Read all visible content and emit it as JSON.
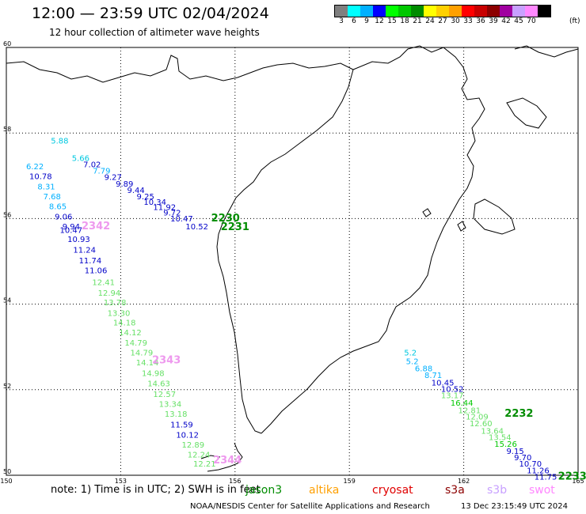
{
  "header": {
    "title": "12:00 — 23:59 UTC 02/04/2024",
    "subtitle": "12 hour collection of altimeter wave heights"
  },
  "colorbar": {
    "unit": "(ft)",
    "swatches": [
      {
        "label": "3",
        "color": "#7f7f7f"
      },
      {
        "label": "6",
        "color": "#00ffff"
      },
      {
        "label": "9",
        "color": "#00b0ff"
      },
      {
        "label": "12",
        "color": "#0000ff"
      },
      {
        "label": "15",
        "color": "#00ff00"
      },
      {
        "label": "18",
        "color": "#00c800"
      },
      {
        "label": "21",
        "color": "#008c00"
      },
      {
        "label": "24",
        "color": "#ffff00"
      },
      {
        "label": "27",
        "color": "#ffd000"
      },
      {
        "label": "30",
        "color": "#ffa000"
      },
      {
        "label": "33",
        "color": "#ff0000"
      },
      {
        "label": "36",
        "color": "#c80000"
      },
      {
        "label": "39",
        "color": "#8c0000"
      },
      {
        "label": "42",
        "color": "#a000a0"
      },
      {
        "label": "45",
        "color": "#c8a0ff"
      },
      {
        "label": "70",
        "color": "#ff88ff"
      },
      {
        "label": "",
        "color": "#000000"
      }
    ]
  },
  "map": {
    "lon_ticks": [
      "150",
      "153",
      "156",
      "159",
      "162",
      "165"
    ],
    "lat_ticks": [
      "60",
      "58",
      "56",
      "54",
      "52",
      "50"
    ],
    "lon_range": [
      150,
      165
    ],
    "lat_range": [
      50,
      60
    ]
  },
  "tracks": {
    "labels": [
      {
        "text": "5.88",
        "lon": 151.4,
        "lat": 57.75,
        "color": "#00c8e0"
      },
      {
        "text": "5.66",
        "lon": 151.95,
        "lat": 57.35,
        "color": "#00c8e0"
      },
      {
        "text": "7.02",
        "lon": 152.25,
        "lat": 57.2,
        "color": "#0000c8"
      },
      {
        "text": "7.79",
        "lon": 152.5,
        "lat": 57.05,
        "color": "#00b0ff"
      },
      {
        "text": "9.27",
        "lon": 152.8,
        "lat": 56.9,
        "color": "#0000c8"
      },
      {
        "text": "9.89",
        "lon": 153.1,
        "lat": 56.75,
        "color": "#0000c8"
      },
      {
        "text": "9.44",
        "lon": 153.4,
        "lat": 56.6,
        "color": "#0000c8"
      },
      {
        "text": "9.25",
        "lon": 153.65,
        "lat": 56.45,
        "color": "#0000c8"
      },
      {
        "text": "10.34",
        "lon": 153.9,
        "lat": 56.32,
        "color": "#0000c8"
      },
      {
        "text": "11.92",
        "lon": 154.15,
        "lat": 56.2,
        "color": "#0000c8"
      },
      {
        "text": "9.72",
        "lon": 154.35,
        "lat": 56.07,
        "color": "#0000c8"
      },
      {
        "text": "10.47",
        "lon": 154.6,
        "lat": 55.93,
        "color": "#0000c8"
      },
      {
        "text": "10.52",
        "lon": 155.0,
        "lat": 55.75,
        "color": "#0000c8"
      },
      {
        "text": "6.22",
        "lon": 150.75,
        "lat": 57.15,
        "color": "#00b0ff"
      },
      {
        "text": "10.78",
        "lon": 150.9,
        "lat": 56.92,
        "color": "#0000c8"
      },
      {
        "text": "8.31",
        "lon": 151.05,
        "lat": 56.68,
        "color": "#00b0ff"
      },
      {
        "text": "7.68",
        "lon": 151.2,
        "lat": 56.45,
        "color": "#00b0ff"
      },
      {
        "text": "8.65",
        "lon": 151.35,
        "lat": 56.22,
        "color": "#00b0ff"
      },
      {
        "text": "9.06",
        "lon": 151.5,
        "lat": 55.98,
        "color": "#0000c8"
      },
      {
        "text": "9.94",
        "lon": 151.7,
        "lat": 55.75,
        "color": "#0000c8"
      },
      {
        "text": "10.47",
        "lon": 151.7,
        "lat": 55.67,
        "color": "#0000c8"
      },
      {
        "text": "10.93",
        "lon": 151.9,
        "lat": 55.45,
        "color": "#0000c8"
      },
      {
        "text": "11.24",
        "lon": 152.05,
        "lat": 55.2,
        "color": "#0000c8"
      },
      {
        "text": "11.74",
        "lon": 152.2,
        "lat": 54.95,
        "color": "#0000c8"
      },
      {
        "text": "11.06",
        "lon": 152.35,
        "lat": 54.72,
        "color": "#0000c8"
      },
      {
        "text": "12.41",
        "lon": 152.55,
        "lat": 54.45,
        "color": "#66e066"
      },
      {
        "text": "12.94",
        "lon": 152.7,
        "lat": 54.2,
        "color": "#66e066"
      },
      {
        "text": "13.78",
        "lon": 152.85,
        "lat": 53.97,
        "color": "#66e066"
      },
      {
        "text": "13.30",
        "lon": 152.95,
        "lat": 53.72,
        "color": "#66e066"
      },
      {
        "text": "14.18",
        "lon": 153.1,
        "lat": 53.5,
        "color": "#66e066"
      },
      {
        "text": "14.12",
        "lon": 153.25,
        "lat": 53.27,
        "color": "#66e066"
      },
      {
        "text": "14.79",
        "lon": 153.4,
        "lat": 53.03,
        "color": "#66e066"
      },
      {
        "text": "14.79",
        "lon": 153.55,
        "lat": 52.8,
        "color": "#66e066"
      },
      {
        "text": "14.14",
        "lon": 153.7,
        "lat": 52.57,
        "color": "#66e066"
      },
      {
        "text": "14.98",
        "lon": 153.85,
        "lat": 52.32,
        "color": "#66e066"
      },
      {
        "text": "14.63",
        "lon": 154.0,
        "lat": 52.08,
        "color": "#66e066"
      },
      {
        "text": "12.57",
        "lon": 154.15,
        "lat": 51.83,
        "color": "#66e066"
      },
      {
        "text": "13.34",
        "lon": 154.3,
        "lat": 51.6,
        "color": "#66e066"
      },
      {
        "text": "13.18",
        "lon": 154.45,
        "lat": 51.37,
        "color": "#66e066"
      },
      {
        "text": "11.59",
        "lon": 154.6,
        "lat": 51.12,
        "color": "#0000c8"
      },
      {
        "text": "10.12",
        "lon": 154.75,
        "lat": 50.88,
        "color": "#0000c8"
      },
      {
        "text": "12.89",
        "lon": 154.9,
        "lat": 50.65,
        "color": "#66e066"
      },
      {
        "text": "12.24",
        "lon": 155.05,
        "lat": 50.42,
        "color": "#66e066"
      },
      {
        "text": "12.21",
        "lon": 155.2,
        "lat": 50.2,
        "color": "#66e066"
      },
      {
        "text": "5.2",
        "lon": 160.6,
        "lat": 52.8,
        "color": "#00c8e0"
      },
      {
        "text": "5.2",
        "lon": 160.65,
        "lat": 52.6,
        "color": "#00b0ff"
      },
      {
        "text": "6.88",
        "lon": 160.95,
        "lat": 52.43,
        "color": "#00b0ff"
      },
      {
        "text": "8.71",
        "lon": 161.2,
        "lat": 52.27,
        "color": "#00b0ff"
      },
      {
        "text": "10.45",
        "lon": 161.45,
        "lat": 52.1,
        "color": "#0000c8"
      },
      {
        "text": "10.52",
        "lon": 161.7,
        "lat": 51.95,
        "color": "#0000c8"
      },
      {
        "text": "13.17",
        "lon": 161.7,
        "lat": 51.8,
        "color": "#66e066"
      },
      {
        "text": "16.44",
        "lon": 161.95,
        "lat": 51.63,
        "color": "#00c800"
      },
      {
        "text": "12.81",
        "lon": 162.15,
        "lat": 51.45,
        "color": "#66e066"
      },
      {
        "text": "12.09",
        "lon": 162.35,
        "lat": 51.3,
        "color": "#66e066"
      },
      {
        "text": "12.60",
        "lon": 162.45,
        "lat": 51.15,
        "color": "#66e066"
      },
      {
        "text": "13.64",
        "lon": 162.75,
        "lat": 50.97,
        "color": "#66e066"
      },
      {
        "text": "13.54",
        "lon": 162.95,
        "lat": 50.82,
        "color": "#66e066"
      },
      {
        "text": "15.26",
        "lon": 163.1,
        "lat": 50.67,
        "color": "#00c800"
      },
      {
        "text": "9.15",
        "lon": 163.35,
        "lat": 50.5,
        "color": "#0000c8"
      },
      {
        "text": "9.70",
        "lon": 163.55,
        "lat": 50.35,
        "color": "#0000c8"
      },
      {
        "text": "10.70",
        "lon": 163.75,
        "lat": 50.2,
        "color": "#0000c8"
      },
      {
        "text": "11.26",
        "lon": 163.95,
        "lat": 50.05,
        "color": "#0000c8"
      },
      {
        "text": "11.75",
        "lon": 164.15,
        "lat": 49.9,
        "color": "#0000c8"
      }
    ],
    "time_tags": [
      {
        "text": "2230",
        "lon": 155.75,
        "lat": 55.93,
        "color": "#008c00"
      },
      {
        "text": "2231",
        "lon": 156.0,
        "lat": 55.73,
        "color": "#008c00"
      },
      {
        "text": "2342",
        "lon": 152.35,
        "lat": 55.75,
        "color": "#ee99ee"
      },
      {
        "text": "2343",
        "lon": 154.2,
        "lat": 52.62,
        "color": "#ee99ee"
      },
      {
        "text": "2232",
        "lon": 163.45,
        "lat": 51.37,
        "color": "#008c00"
      },
      {
        "text": "2233",
        "lon": 164.85,
        "lat": 49.9,
        "color": "#008c00"
      },
      {
        "text": "2344",
        "lon": 155.8,
        "lat": 50.28,
        "color": "#ee99ee"
      }
    ]
  },
  "footer": {
    "note": "note: 1) Time is in UTC; 2) SWH is in feet",
    "satellites": [
      {
        "label": "jason3",
        "color": "#008c00"
      },
      {
        "label": "altika",
        "color": "#ffa000"
      },
      {
        "label": "cryosat",
        "color": "#e00000"
      },
      {
        "label": "s3a",
        "color": "#8c0000"
      },
      {
        "label": "s3b",
        "color": "#c8a0ff"
      },
      {
        "label": "swot",
        "color": "#ff88ff"
      }
    ],
    "credit": "NOAA/NESDIS Center for Satellite Applications and Research",
    "date": "13 Dec 23:15:49 UTC 2024"
  }
}
